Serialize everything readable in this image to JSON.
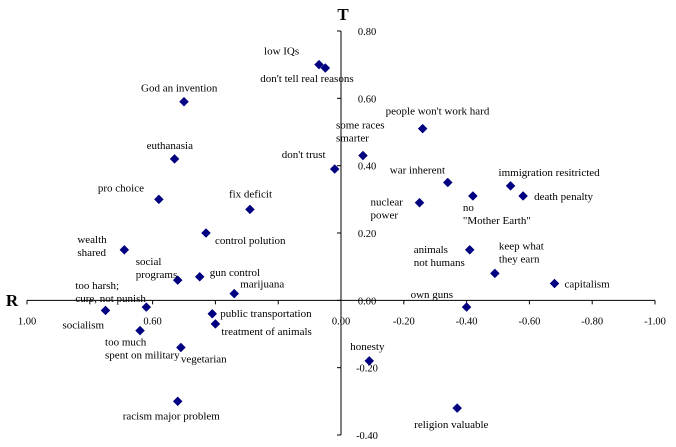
{
  "chart_data": {
    "type": "scatter",
    "title": "",
    "x_axis_title": "R",
    "y_axis_title": "T",
    "xlim": [
      1.0,
      -1.0
    ],
    "ylim": [
      -0.4,
      0.8
    ],
    "x_ticks": [
      {
        "value": 1.0,
        "label": "1.00"
      },
      {
        "value": 0.6,
        "label": "0.60"
      },
      {
        "value": 0.0,
        "label": "0.00"
      },
      {
        "value": -0.2,
        "label": "-0.20"
      },
      {
        "value": -0.4,
        "label": "-0.40"
      },
      {
        "value": -0.6,
        "label": "-0.60"
      },
      {
        "value": -0.8,
        "label": "-0.80"
      },
      {
        "value": -1.0,
        "label": "-1.00"
      }
    ],
    "y_ticks": [
      {
        "value": 0.8,
        "label": "0.80"
      },
      {
        "value": 0.6,
        "label": "0.60"
      },
      {
        "value": 0.4,
        "label": "0.40"
      },
      {
        "value": 0.2,
        "label": "0.20"
      },
      {
        "value": 0.0,
        "label": "0.00"
      },
      {
        "value": -0.2,
        "label": "-0.20"
      },
      {
        "value": -0.4,
        "label": "-0.40"
      }
    ],
    "marker_color": "#000080",
    "points": [
      {
        "label": [
          "low IQs"
        ],
        "x": 0.07,
        "y": 0.7,
        "anchor": "start",
        "dx": -55,
        "dy": -10
      },
      {
        "label": [
          "don't tell real reasons"
        ],
        "x": 0.05,
        "y": 0.69,
        "anchor": "start",
        "dx": -65,
        "dy": 14
      },
      {
        "label": [
          "God an invention"
        ],
        "x": 0.5,
        "y": 0.59,
        "anchor": "start",
        "dx": -43,
        "dy": -10
      },
      {
        "label": [
          "people won't work hard"
        ],
        "x": -0.26,
        "y": 0.51,
        "anchor": "start",
        "dx": -37,
        "dy": -14
      },
      {
        "label": [
          "some races",
          "smarter"
        ],
        "x": -0.07,
        "y": 0.43,
        "anchor": "start",
        "dx": -27,
        "dy": -27
      },
      {
        "label": [
          "euthanasia"
        ],
        "x": 0.53,
        "y": 0.42,
        "anchor": "start",
        "dx": -28,
        "dy": -10
      },
      {
        "label": [
          "don't trust"
        ],
        "x": 0.02,
        "y": 0.39,
        "anchor": "start",
        "dx": -53,
        "dy": -11
      },
      {
        "label": [
          "war inherent"
        ],
        "x": -0.34,
        "y": 0.35,
        "anchor": "start",
        "dx": -58,
        "dy": -9
      },
      {
        "label": [
          "immigration resitricted"
        ],
        "x": -0.54,
        "y": 0.34,
        "anchor": "start",
        "dx": -12,
        "dy": -10
      },
      {
        "label": [
          "death penalty"
        ],
        "x": -0.58,
        "y": 0.31,
        "anchor": "start",
        "dx": 11,
        "dy": 4
      },
      {
        "label": [
          "no",
          "\"Mother Earth\""
        ],
        "x": -0.42,
        "y": 0.31,
        "anchor": "start",
        "dx": -10,
        "dy": 15
      },
      {
        "label": [
          "pro choice"
        ],
        "x": 0.58,
        "y": 0.3,
        "anchor": "start",
        "dx": -61,
        "dy": -8
      },
      {
        "label": [
          "nuclear",
          "power"
        ],
        "x": -0.25,
        "y": 0.29,
        "anchor": "start",
        "dx": -49,
        "dy": 3
      },
      {
        "label": [
          "fix deficit"
        ],
        "x": 0.29,
        "y": 0.27,
        "anchor": "start",
        "dx": -21,
        "dy": -12
      },
      {
        "label": [
          "control polution"
        ],
        "x": 0.43,
        "y": 0.2,
        "anchor": "start",
        "dx": 9,
        "dy": 11
      },
      {
        "label": [
          "wealth",
          "shared"
        ],
        "x": 0.69,
        "y": 0.15,
        "anchor": "start",
        "dx": -47,
        "dy": -7
      },
      {
        "label": [
          "animals",
          "not humans"
        ],
        "x": -0.41,
        "y": 0.15,
        "anchor": "start",
        "dx": -56,
        "dy": 3
      },
      {
        "label": [
          "keep what",
          "they earn"
        ],
        "x": -0.49,
        "y": 0.08,
        "anchor": "start",
        "dx": 4,
        "dy": -24
      },
      {
        "label": [
          "gun control"
        ],
        "x": 0.45,
        "y": 0.07,
        "anchor": "start",
        "dx": 10,
        "dy": -1
      },
      {
        "label": [
          "social",
          "programs"
        ],
        "x": 0.52,
        "y": 0.06,
        "anchor": "start",
        "dx": -42,
        "dy": -15
      },
      {
        "label": [
          "capitalism"
        ],
        "x": -0.68,
        "y": 0.05,
        "anchor": "start",
        "dx": 10,
        "dy": 4
      },
      {
        "label": [
          "marijuana"
        ],
        "x": 0.34,
        "y": 0.02,
        "anchor": "start",
        "dx": 6,
        "dy": -6
      },
      {
        "label": [
          "too harsh;",
          "cure, not punish"
        ],
        "x": 0.62,
        "y": -0.02,
        "anchor": "start",
        "dx": -71,
        "dy": -18
      },
      {
        "label": [
          "own guns"
        ],
        "x": -0.4,
        "y": -0.02,
        "anchor": "start",
        "dx": -56,
        "dy": -9
      },
      {
        "label": [
          "socialism"
        ],
        "x": 0.75,
        "y": -0.03,
        "anchor": "start",
        "dx": -43,
        "dy": 18
      },
      {
        "label": [
          "public transportation"
        ],
        "x": 0.41,
        "y": -0.04,
        "anchor": "start",
        "dx": 8,
        "dy": 3
      },
      {
        "label": [
          "treatment of animals"
        ],
        "x": 0.4,
        "y": -0.07,
        "anchor": "start",
        "dx": 6,
        "dy": 11
      },
      {
        "label": [
          "too much",
          "spent on military"
        ],
        "x": 0.64,
        "y": -0.09,
        "anchor": "start",
        "dx": -35,
        "dy": 15
      },
      {
        "label": [
          "vegetarian"
        ],
        "x": 0.51,
        "y": -0.14,
        "anchor": "start",
        "dx": 0,
        "dy": 15
      },
      {
        "label": [
          "honesty"
        ],
        "x": -0.09,
        "y": -0.18,
        "anchor": "start",
        "dx": -19,
        "dy": -11
      },
      {
        "label": [
          "racism major problem"
        ],
        "x": 0.52,
        "y": -0.3,
        "anchor": "start",
        "dx": -55,
        "dy": 18
      },
      {
        "label": [
          "religion valuable"
        ],
        "x": -0.37,
        "y": -0.32,
        "anchor": "start",
        "dx": -43,
        "dy": 20
      }
    ]
  }
}
